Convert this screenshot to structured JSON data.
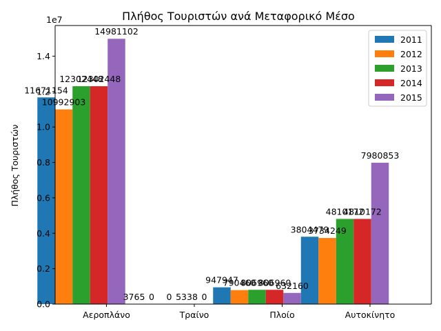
{
  "chart_data": {
    "type": "bar",
    "title": "Πλήθος Τουριστών ανά Μεταφορικό Μέσο",
    "xlabel": "",
    "ylabel": "Πλήθος Τουριστών",
    "categories": [
      "Αεροπλάνο",
      "Τραίνο",
      "Πλοίο",
      "Αυτοκίνητο"
    ],
    "series": [
      {
        "name": "2011",
        "color": "#1f77b4",
        "values": [
          11671154,
          3765,
          947947,
          3804479
        ]
      },
      {
        "name": "2012",
        "color": "#ff7f0e",
        "values": [
          10992903,
          0,
          790460,
          3734249
        ]
      },
      {
        "name": "2013",
        "color": "#2ca02c",
        "values": [
          12302448,
          0,
          806960,
          4810172
        ]
      },
      {
        "name": "2014",
        "color": "#d62728",
        "values": [
          12302448,
          5338,
          806960,
          4810172
        ]
      },
      {
        "name": "2015",
        "color": "#9467bd",
        "values": [
          14981102,
          0,
          632160,
          7980853
        ]
      }
    ],
    "data_labels": [
      [
        "11671154",
        "3765",
        "947947",
        "3804479"
      ],
      [
        "10992903",
        "0",
        "790460",
        "3734249"
      ],
      [
        "12302448",
        "0",
        "806960",
        "4810172"
      ],
      [
        "12302448",
        "5338",
        "806960",
        "4810172"
      ],
      [
        "14981102",
        "0",
        "632160",
        "7980853"
      ]
    ],
    "y_ticks": [
      0,
      2000000,
      4000000,
      6000000,
      8000000,
      10000000,
      12000000,
      14000000
    ],
    "y_tick_labels": [
      "0.0",
      "0.2",
      "0.4",
      "0.6",
      "0.8",
      "1.0",
      "1.2",
      "1.4"
    ],
    "y_offset_label": "1e7",
    "ylim": [
      0,
      15730157
    ],
    "grid": false,
    "legend_position": "top-right"
  }
}
